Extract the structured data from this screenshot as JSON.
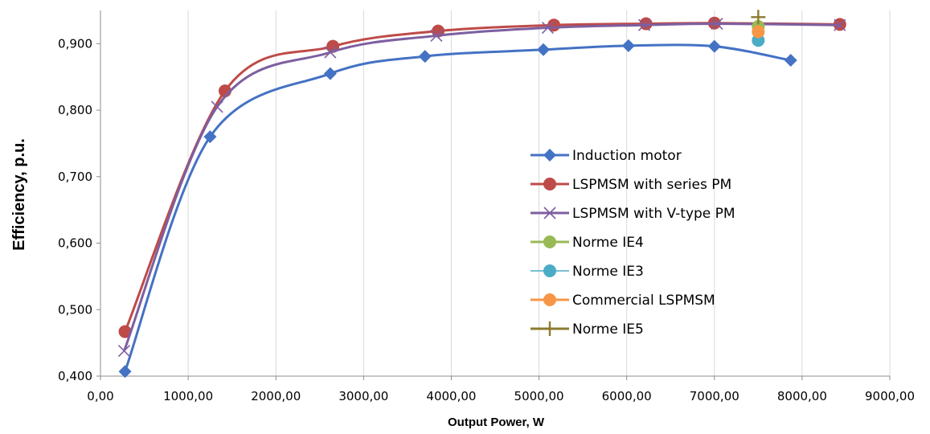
{
  "chart_data": {
    "type": "line",
    "xlabel": "Output Power, W",
    "ylabel": "Efficiency,  p.u.",
    "xlim": [
      0,
      9000
    ],
    "ylim": [
      0.4,
      0.95
    ],
    "x_ticks": [
      "0,00",
      "1000,00",
      "2000,00",
      "3000,00",
      "4000,00",
      "5000,00",
      "6000,00",
      "7000,00",
      "8000,00",
      "9000,00"
    ],
    "y_ticks": [
      "0,400",
      "0,500",
      "0,600",
      "0,700",
      "0,800",
      "0,900"
    ],
    "grid": "vertical",
    "legend_position": "center-right",
    "series": [
      {
        "name": "Induction motor",
        "color": "#4472C4",
        "marker": "diamond",
        "smooth": true,
        "points": [
          [
            280,
            0.407
          ],
          [
            1250,
            0.76
          ],
          [
            2620,
            0.855
          ],
          [
            3700,
            0.881
          ],
          [
            5050,
            0.891
          ],
          [
            6020,
            0.897
          ],
          [
            7000,
            0.896
          ],
          [
            7870,
            0.875
          ]
        ]
      },
      {
        "name": "LSPMSM with series PM",
        "color": "#BE4B48",
        "marker": "circle",
        "smooth": true,
        "points": [
          [
            280,
            0.467
          ],
          [
            1420,
            0.829
          ],
          [
            2650,
            0.896
          ],
          [
            3850,
            0.919
          ],
          [
            5170,
            0.928
          ],
          [
            6220,
            0.93
          ],
          [
            7000,
            0.931
          ],
          [
            8430,
            0.929
          ]
        ]
      },
      {
        "name": "LSPMSM with V-type PM",
        "color": "#7D5FA0",
        "marker": "x",
        "smooth": true,
        "points": [
          [
            270,
            0.438
          ],
          [
            1330,
            0.805
          ],
          [
            2620,
            0.887
          ],
          [
            3830,
            0.912
          ],
          [
            5100,
            0.924
          ],
          [
            6200,
            0.928
          ],
          [
            7030,
            0.93
          ],
          [
            8430,
            0.928
          ]
        ]
      },
      {
        "name": "Norme IE4",
        "color": "#98B954",
        "marker": "circle",
        "smooth": false,
        "points": [
          [
            7500,
            0.926
          ]
        ]
      },
      {
        "name": "Norme IE3",
        "color": "#4BACC6",
        "marker": "circle",
        "smooth": false,
        "points": [
          [
            7500,
            0.905
          ]
        ]
      },
      {
        "name": "Commercial LSPMSM",
        "color": "#F79646",
        "marker": "circle",
        "smooth": false,
        "points": [
          [
            7500,
            0.918
          ]
        ]
      },
      {
        "name": "Norme IE5",
        "color": "#8C7A2E",
        "marker": "plus",
        "smooth": false,
        "points": [
          [
            7500,
            0.94
          ]
        ]
      }
    ]
  }
}
